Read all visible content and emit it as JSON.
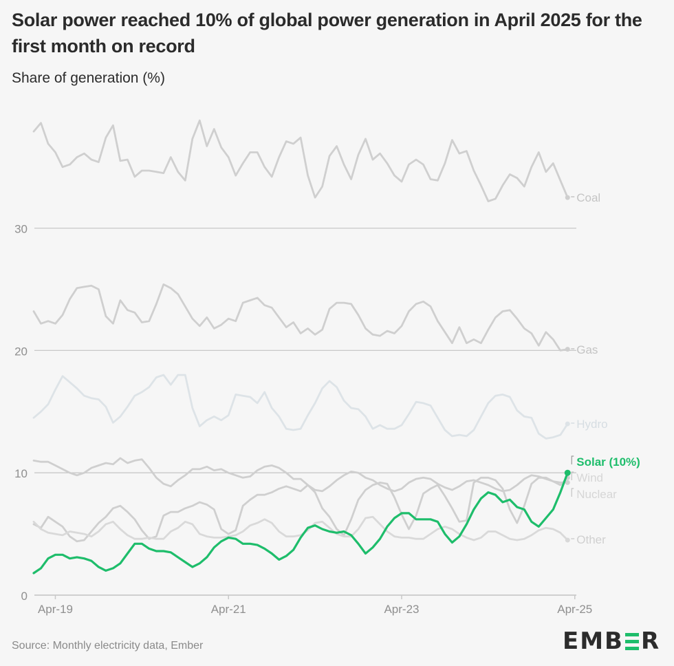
{
  "header": {
    "title": "Solar power reached 10% of global power generation in April 2025 for the first month on record",
    "subtitle": "Share of generation (%)"
  },
  "footer": {
    "source": "Source: Monthly electricity data, Ember",
    "logo_left": "EMB",
    "logo_right": "R"
  },
  "chart_data": {
    "type": "line",
    "title": "Solar power reached 10% of global power generation in April 2025 for the first month on record",
    "ylabel": "Share of generation (%)",
    "xlabel": "",
    "x_start": "Jan-19",
    "x_end": "Apr-25",
    "frequency": "monthly",
    "ylim": [
      0,
      40
    ],
    "yticks": [
      0,
      10,
      20,
      30
    ],
    "xticks": [
      {
        "label": "Apr-19",
        "index": 3
      },
      {
        "label": "Apr-21",
        "index": 27
      },
      {
        "label": "Apr-23",
        "index": 51
      },
      {
        "label": "Apr-25",
        "index": 75
      }
    ],
    "grid": "horizontal",
    "legend": "inline-right",
    "series": [
      {
        "name": "Coal",
        "label": "Coal",
        "color": "#cfcfcf",
        "labelColor": "#c4c4c4",
        "highlight": false,
        "values": [
          37.9,
          38.6,
          36.9,
          36.2,
          35.0,
          35.2,
          35.8,
          36.1,
          35.6,
          35.4,
          37.4,
          38.4,
          35.5,
          35.6,
          34.2,
          34.7,
          34.7,
          34.6,
          34.5,
          35.8,
          34.6,
          33.9,
          37.3,
          38.8,
          36.7,
          38.1,
          36.6,
          35.8,
          34.3,
          35.3,
          36.2,
          36.2,
          35.0,
          34.2,
          35.8,
          37.1,
          36.9,
          37.4,
          34.3,
          32.5,
          33.4,
          35.9,
          36.7,
          35.2,
          34.0,
          36.0,
          37.3,
          35.6,
          36.1,
          35.3,
          34.3,
          33.8,
          35.2,
          35.6,
          35.2,
          34.0,
          33.9,
          35.3,
          37.2,
          36.1,
          36.3,
          34.7,
          33.5,
          32.2,
          32.4,
          33.5,
          34.4,
          34.1,
          33.4,
          35.0,
          36.2,
          34.6,
          35.3,
          33.9,
          32.5
        ]
      },
      {
        "name": "Gas",
        "label": "Gas",
        "color": "#cfcfcf",
        "labelColor": "#c4c4c4",
        "highlight": false,
        "values": [
          23.2,
          22.2,
          22.4,
          22.2,
          22.9,
          24.2,
          25.1,
          25.2,
          25.3,
          25.0,
          22.8,
          22.2,
          24.1,
          23.3,
          23.1,
          22.3,
          22.4,
          23.8,
          25.4,
          25.1,
          24.6,
          23.6,
          22.6,
          22.0,
          22.7,
          21.8,
          22.1,
          22.6,
          22.4,
          23.9,
          24.1,
          24.3,
          23.7,
          23.5,
          22.7,
          21.9,
          22.3,
          21.4,
          21.8,
          21.3,
          21.7,
          23.4,
          23.9,
          23.9,
          23.8,
          22.9,
          21.8,
          21.3,
          21.2,
          21.6,
          21.4,
          22.0,
          23.2,
          23.8,
          24.0,
          23.6,
          22.4,
          21.5,
          20.6,
          21.9,
          20.6,
          20.9,
          20.6,
          21.7,
          22.7,
          23.2,
          23.3,
          22.6,
          21.8,
          21.4,
          20.4,
          21.5,
          20.9,
          20.0,
          20.1
        ]
      },
      {
        "name": "Hydro",
        "label": "Hydro",
        "color": "#dde3e7",
        "labelColor": "#d6dde2",
        "highlight": false,
        "values": [
          14.5,
          15.0,
          15.6,
          16.8,
          17.9,
          17.4,
          16.9,
          16.3,
          16.1,
          16.0,
          15.4,
          14.1,
          14.6,
          15.4,
          16.3,
          16.6,
          17.0,
          17.8,
          18.0,
          17.2,
          18.0,
          18.0,
          15.3,
          13.8,
          14.3,
          14.6,
          14.3,
          14.7,
          16.4,
          16.3,
          16.2,
          15.7,
          16.6,
          15.3,
          14.6,
          13.6,
          13.5,
          13.6,
          14.7,
          15.7,
          16.9,
          17.5,
          17.0,
          15.9,
          15.3,
          15.2,
          14.6,
          13.6,
          13.9,
          13.6,
          13.6,
          13.9,
          14.8,
          15.8,
          15.7,
          15.5,
          14.5,
          13.5,
          13.0,
          13.1,
          13.0,
          13.5,
          14.6,
          15.7,
          16.3,
          16.4,
          16.2,
          15.1,
          14.6,
          14.5,
          13.2,
          12.8,
          12.9,
          13.1,
          14.0
        ]
      },
      {
        "name": "Wind",
        "label": "Wind",
        "color": "#cfcfcf",
        "labelColor": "#d6d6d6",
        "highlight": false,
        "values": [
          5.8,
          5.5,
          6.4,
          6.0,
          5.6,
          4.8,
          4.4,
          4.5,
          5.2,
          5.9,
          6.4,
          7.1,
          7.3,
          6.8,
          6.2,
          5.3,
          4.6,
          4.8,
          6.5,
          6.8,
          6.8,
          7.1,
          7.3,
          7.6,
          7.4,
          7.0,
          5.4,
          5.0,
          5.3,
          7.3,
          7.8,
          8.2,
          8.2,
          8.4,
          8.7,
          8.9,
          8.7,
          8.5,
          9.0,
          8.4,
          7.1,
          6.4,
          5.4,
          4.9,
          6.2,
          7.8,
          8.6,
          9.0,
          9.2,
          9.1,
          8.0,
          6.6,
          5.4,
          6.5,
          8.3,
          8.7,
          9.0,
          8.1,
          7.1,
          6.0,
          6.1,
          9.2,
          9.6,
          9.6,
          9.4,
          8.7,
          7.0,
          5.9,
          7.3,
          9.1,
          9.6,
          9.6,
          9.3,
          9.0,
          9.6
        ]
      },
      {
        "name": "Nuclear",
        "label": "Nuclear",
        "color": "#cfcfcf",
        "labelColor": "#d6d6d6",
        "highlight": false,
        "values": [
          11.0,
          10.9,
          10.9,
          10.6,
          10.3,
          10.0,
          9.8,
          10.0,
          10.4,
          10.6,
          10.8,
          10.7,
          11.2,
          10.8,
          11.0,
          11.1,
          10.4,
          9.6,
          9.1,
          8.9,
          9.4,
          9.8,
          10.3,
          10.3,
          10.5,
          10.2,
          10.3,
          10.0,
          9.8,
          9.6,
          9.7,
          10.2,
          10.5,
          10.6,
          10.4,
          10.0,
          9.5,
          9.5,
          9.0,
          8.6,
          8.5,
          8.9,
          9.4,
          9.8,
          10.1,
          10.0,
          9.6,
          9.4,
          9.0,
          8.7,
          8.5,
          8.7,
          9.2,
          9.5,
          9.6,
          9.5,
          9.1,
          8.8,
          8.6,
          8.9,
          9.3,
          9.4,
          9.2,
          9.0,
          8.7,
          8.5,
          8.6,
          9.0,
          9.5,
          9.8,
          9.7,
          9.5,
          9.3,
          9.2,
          9.2
        ]
      },
      {
        "name": "Other",
        "label": "Other",
        "color": "#d9d9d9",
        "labelColor": "#d0d0d0",
        "highlight": false,
        "values": [
          6.0,
          5.4,
          5.1,
          5.0,
          4.9,
          5.2,
          5.1,
          5.0,
          4.8,
          5.2,
          5.8,
          6.0,
          5.4,
          4.9,
          4.6,
          4.6,
          4.7,
          4.6,
          4.6,
          5.2,
          5.5,
          6.0,
          5.8,
          5.0,
          4.8,
          4.7,
          4.7,
          4.8,
          4.9,
          5.2,
          5.7,
          5.9,
          6.2,
          5.9,
          5.2,
          4.8,
          4.8,
          4.9,
          5.3,
          5.9,
          6.0,
          5.5,
          5.0,
          4.8,
          4.8,
          5.4,
          6.3,
          6.4,
          5.8,
          5.2,
          4.8,
          4.7,
          4.7,
          4.6,
          4.6,
          5.0,
          5.4,
          5.6,
          5.4,
          5.0,
          4.7,
          4.5,
          4.7,
          5.2,
          5.2,
          4.9,
          4.6,
          4.5,
          4.6,
          4.9,
          5.3,
          5.5,
          5.4,
          5.1,
          4.5
        ]
      },
      {
        "name": "Solar",
        "label": "Solar (10%)",
        "color": "#1ebd6b",
        "labelColor": "#1ebd6b",
        "highlight": true,
        "values": [
          1.8,
          2.2,
          3.0,
          3.3,
          3.3,
          3.0,
          3.1,
          3.0,
          2.8,
          2.3,
          2.0,
          2.2,
          2.6,
          3.4,
          4.2,
          4.2,
          3.8,
          3.6,
          3.6,
          3.5,
          3.1,
          2.7,
          2.3,
          2.6,
          3.1,
          3.9,
          4.4,
          4.7,
          4.6,
          4.2,
          4.2,
          4.1,
          3.8,
          3.4,
          2.9,
          3.2,
          3.7,
          4.7,
          5.5,
          5.7,
          5.4,
          5.2,
          5.1,
          5.2,
          4.9,
          4.2,
          3.4,
          3.9,
          4.6,
          5.6,
          6.3,
          6.7,
          6.7,
          6.2,
          6.2,
          6.2,
          6.0,
          5.0,
          4.3,
          4.8,
          5.8,
          7.0,
          7.9,
          8.4,
          8.2,
          7.6,
          7.8,
          7.2,
          7.0,
          6.0,
          5.6,
          6.3,
          7.0,
          8.4,
          10.0
        ]
      }
    ]
  }
}
